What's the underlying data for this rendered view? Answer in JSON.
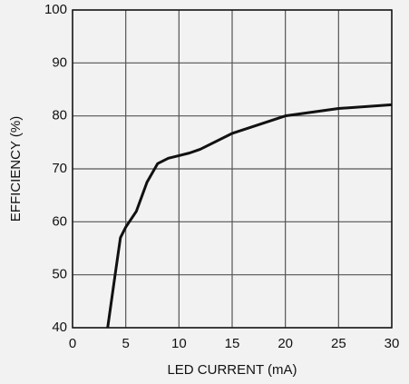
{
  "chart_data": {
    "type": "line",
    "x_label": "LED CURRENT (mA)",
    "y_label": "EFFICIENCY (%)",
    "xlim": [
      0,
      30
    ],
    "xticks": [
      0,
      5,
      10,
      15,
      20,
      25,
      30
    ],
    "ylim": [
      40,
      100
    ],
    "yticks": [
      40,
      50,
      60,
      70,
      80,
      90,
      100
    ],
    "grid": true,
    "series": [
      {
        "color": "#111111",
        "x": [
          3.3,
          4,
          4.5,
          5,
          6,
          7,
          8,
          9,
          10,
          11,
          12,
          15,
          20,
          25,
          30
        ],
        "values": [
          40,
          50,
          57,
          59,
          62,
          67.5,
          71,
          72,
          72.5,
          73,
          73.7,
          76.7,
          80,
          81.4,
          82.1
        ]
      }
    ]
  }
}
